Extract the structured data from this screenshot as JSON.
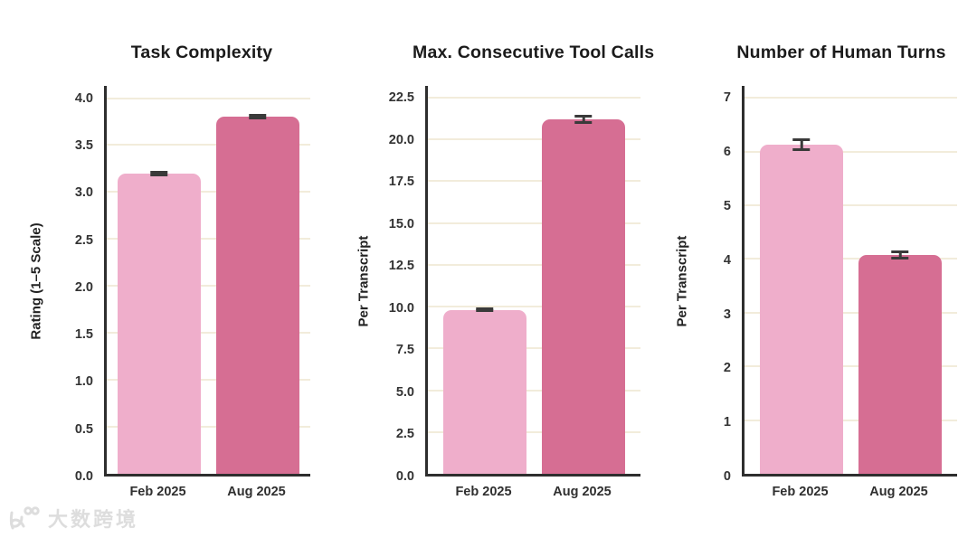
{
  "watermark": {
    "text": "大数跨境",
    "logo": "k100-logo-icon"
  },
  "colors": {
    "feb_bar": "#efaecb",
    "aug_bar": "#d66e93",
    "gridline": "#f2ecdb",
    "axis": "#2e2e2e",
    "error_bar": "#3a3a3a",
    "title_text": "#1b1b1b",
    "tick_text": "#333333",
    "background": "#ffffff"
  },
  "chart_data": [
    {
      "type": "bar",
      "title": "Task Complexity",
      "ylabel": "Rating (1–5 Scale)",
      "xlabel": "",
      "categories": [
        "Feb 2025",
        "Aug 2025"
      ],
      "values": [
        3.2,
        3.8
      ],
      "errors": [
        0.02,
        0.02
      ],
      "series_colors": [
        "#efaecb",
        "#d66e93"
      ],
      "ylim": [
        0,
        4.13
      ],
      "grid": "horizontal",
      "legend": "none",
      "yticks": [
        {
          "label": "0.0",
          "value": 0.0
        },
        {
          "label": "0.5",
          "value": 0.5
        },
        {
          "label": "1.0",
          "value": 1.0
        },
        {
          "label": "1.5",
          "value": 1.5
        },
        {
          "label": "2.0",
          "value": 2.0
        },
        {
          "label": "2.5",
          "value": 2.5
        },
        {
          "label": "3.0",
          "value": 3.0
        },
        {
          "label": "3.5",
          "value": 3.5
        },
        {
          "label": "4.0",
          "value": 4.0
        }
      ]
    },
    {
      "type": "bar",
      "title": "Max. Consecutive Tool Calls",
      "ylabel": "Per Transcript",
      "xlabel": "",
      "categories": [
        "Feb 2025",
        "Aug 2025"
      ],
      "values": [
        9.8,
        21.2
      ],
      "errors": [
        0.08,
        0.2
      ],
      "series_colors": [
        "#efaecb",
        "#d66e93"
      ],
      "ylim": [
        0,
        23.2
      ],
      "grid": "horizontal",
      "legend": "none",
      "yticks": [
        {
          "label": "0.0",
          "value": 0.0
        },
        {
          "label": "2.5",
          "value": 2.5
        },
        {
          "label": "5.0",
          "value": 5.0
        },
        {
          "label": "7.5",
          "value": 7.5
        },
        {
          "label": "10.0",
          "value": 10.0
        },
        {
          "label": "12.5",
          "value": 12.5
        },
        {
          "label": "15.0",
          "value": 15.0
        },
        {
          "label": "17.5",
          "value": 17.5
        },
        {
          "label": "20.0",
          "value": 20.0
        },
        {
          "label": "22.5",
          "value": 22.5
        }
      ]
    },
    {
      "type": "bar",
      "title": "Number of Human Turns",
      "ylabel": "Per Transcript",
      "xlabel": "",
      "categories": [
        "Feb 2025",
        "Aug 2025"
      ],
      "values": [
        6.13,
        4.07
      ],
      "errors": [
        0.1,
        0.07
      ],
      "series_colors": [
        "#efaecb",
        "#d66e93"
      ],
      "ylim": [
        0,
        7.22
      ],
      "grid": "horizontal",
      "legend": "none",
      "yticks": [
        {
          "label": "0",
          "value": 0
        },
        {
          "label": "1",
          "value": 1
        },
        {
          "label": "2",
          "value": 2
        },
        {
          "label": "3",
          "value": 3
        },
        {
          "label": "4",
          "value": 4
        },
        {
          "label": "5",
          "value": 5
        },
        {
          "label": "6",
          "value": 6
        },
        {
          "label": "7",
          "value": 7
        }
      ]
    }
  ]
}
